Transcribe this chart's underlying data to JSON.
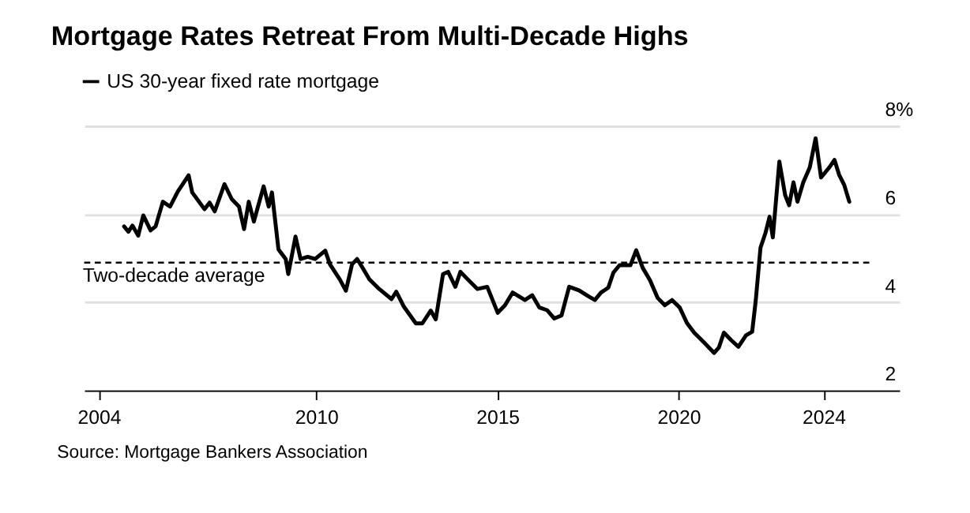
{
  "chart_data": {
    "type": "line",
    "title": "Mortgage Rates Retreat From Multi-Decade Highs",
    "xlim": [
      2003.6,
      2026.09
    ],
    "xticks": [
      2004,
      2010,
      2015,
      2020,
      2024
    ],
    "ylim": [
      2,
      8
    ],
    "yticks": [
      2,
      4,
      6,
      {
        "value": 8,
        "label": "8%"
      }
    ],
    "grid": "y",
    "legend": "top left",
    "line_style": "solid",
    "ref_lines": [
      {
        "axis": "y",
        "value": 4.9,
        "label": "Two-decade average",
        "line_style": "dashed",
        "color": "#000000"
      }
    ],
    "annotations": [
      "Source: Mortgage Bankers Association"
    ],
    "series": [
      {
        "name": "US 30-year fixed rate mortgage",
        "color": "#000000",
        "x": [
          2004.7,
          2004.82,
          2004.93,
          2005.09,
          2005.23,
          2005.43,
          2005.57,
          2005.77,
          2005.97,
          2006.18,
          2006.48,
          2006.58,
          2006.92,
          2007.06,
          2007.2,
          2007.47,
          2007.67,
          2007.87,
          2008.01,
          2008.14,
          2008.28,
          2008.55,
          2008.69,
          2008.78,
          2008.96,
          2009.16,
          2009.23,
          2009.43,
          2009.57,
          2009.77,
          2009.97,
          2010.25,
          2010.38,
          2010.65,
          2010.82,
          2010.99,
          2011.13,
          2011.26,
          2011.47,
          2011.74,
          2012.08,
          2012.21,
          2012.42,
          2012.75,
          2012.93,
          2013.16,
          2013.3,
          2013.5,
          2013.64,
          2013.84,
          2013.98,
          2014.18,
          2014.45,
          2014.72,
          2015.01,
          2015.21,
          2015.42,
          2015.76,
          2015.96,
          2016.16,
          2016.37,
          2016.57,
          2016.77,
          2016.98,
          2017.25,
          2017.52,
          2017.69,
          2017.86,
          2018.06,
          2018.2,
          2018.37,
          2018.67,
          2018.83,
          2019.01,
          2019.21,
          2019.42,
          2019.62,
          2019.82,
          2020.03,
          2020.23,
          2020.43,
          2020.71,
          2020.98,
          2021.11,
          2021.25,
          2021.45,
          2021.65,
          2021.86,
          2022.03,
          2022.13,
          2022.26,
          2022.4,
          2022.51,
          2022.6,
          2022.78,
          2022.94,
          2023.05,
          2023.17,
          2023.28,
          2023.44,
          2023.62,
          2023.78,
          2023.93,
          2024.16,
          2024.3,
          2024.43,
          2024.57,
          2024.71
        ],
        "values": [
          5.72,
          5.6,
          5.74,
          5.51,
          5.97,
          5.63,
          5.72,
          6.28,
          6.17,
          6.51,
          6.88,
          6.49,
          6.11,
          6.26,
          6.06,
          6.68,
          6.34,
          6.17,
          5.66,
          6.28,
          5.83,
          6.63,
          6.17,
          6.49,
          5.2,
          4.98,
          4.64,
          5.49,
          4.98,
          5.03,
          4.98,
          5.17,
          4.86,
          4.52,
          4.26,
          4.86,
          4.98,
          4.81,
          4.52,
          4.3,
          4.07,
          4.24,
          3.9,
          3.52,
          3.52,
          3.81,
          3.61,
          4.64,
          4.69,
          4.35,
          4.69,
          4.52,
          4.3,
          4.35,
          3.76,
          3.93,
          4.22,
          4.05,
          4.16,
          3.88,
          3.82,
          3.63,
          3.7,
          4.35,
          4.27,
          4.13,
          4.05,
          4.22,
          4.33,
          4.67,
          4.84,
          4.84,
          5.18,
          4.78,
          4.5,
          4.1,
          3.93,
          4.05,
          3.88,
          3.53,
          3.31,
          3.08,
          2.85,
          2.97,
          3.31,
          3.14,
          2.99,
          3.25,
          3.33,
          4.05,
          5.24,
          5.58,
          5.94,
          5.47,
          7.19,
          6.43,
          6.2,
          6.72,
          6.28,
          6.72,
          7.06,
          7.72,
          6.83,
          7.06,
          7.23,
          6.89,
          6.66,
          6.28
        ]
      }
    ]
  }
}
